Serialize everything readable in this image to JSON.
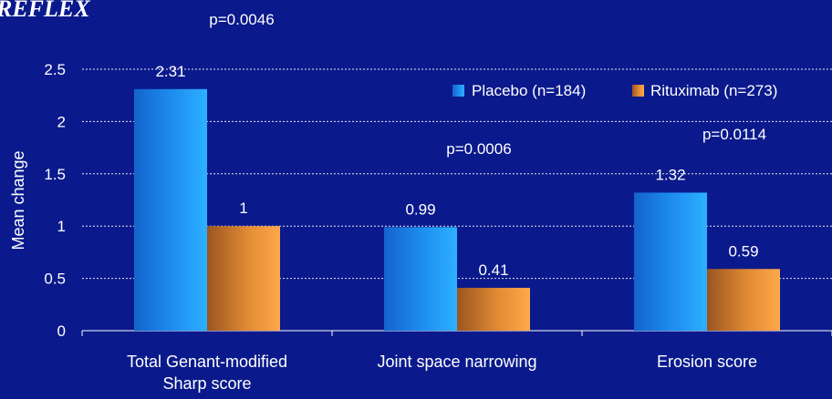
{
  "chart_data": {
    "type": "bar",
    "title": "REFLEX",
    "ylabel": "Mean change",
    "xlabel": "",
    "ylim": [
      0,
      2.5
    ],
    "yticks": [
      0,
      0.5,
      1,
      1.5,
      2,
      2.5
    ],
    "ytick_labels": [
      "0",
      "0.5",
      "1",
      "1.5",
      "2",
      "2.5"
    ],
    "grid": true,
    "legend_position": "top-right",
    "categories": [
      [
        "Total Genant-modified",
        "Sharp score"
      ],
      [
        "Joint space narrowing"
      ],
      [
        "Erosion score"
      ]
    ],
    "series": [
      {
        "name": "Placebo (n=184)",
        "values": [
          2.31,
          0.99,
          1.32
        ],
        "labels": [
          "2.31",
          "0.99",
          "1.32"
        ]
      },
      {
        "name": "Rituximab (n=273)",
        "values": [
          1,
          0.41,
          0.59
        ],
        "labels": [
          "1",
          "0.41",
          "0.59"
        ]
      }
    ],
    "annotations": [
      "p=0.0046",
      "p=0.0006",
      "p=0.0114"
    ]
  },
  "colors": {
    "background": "#0a1a8c",
    "placebo_light": "#2aa8ff",
    "placebo_dark": "#1060c8",
    "rituximab_light": "#ffa648",
    "rituximab_dark": "#9a5520",
    "text": "#ffffff"
  }
}
